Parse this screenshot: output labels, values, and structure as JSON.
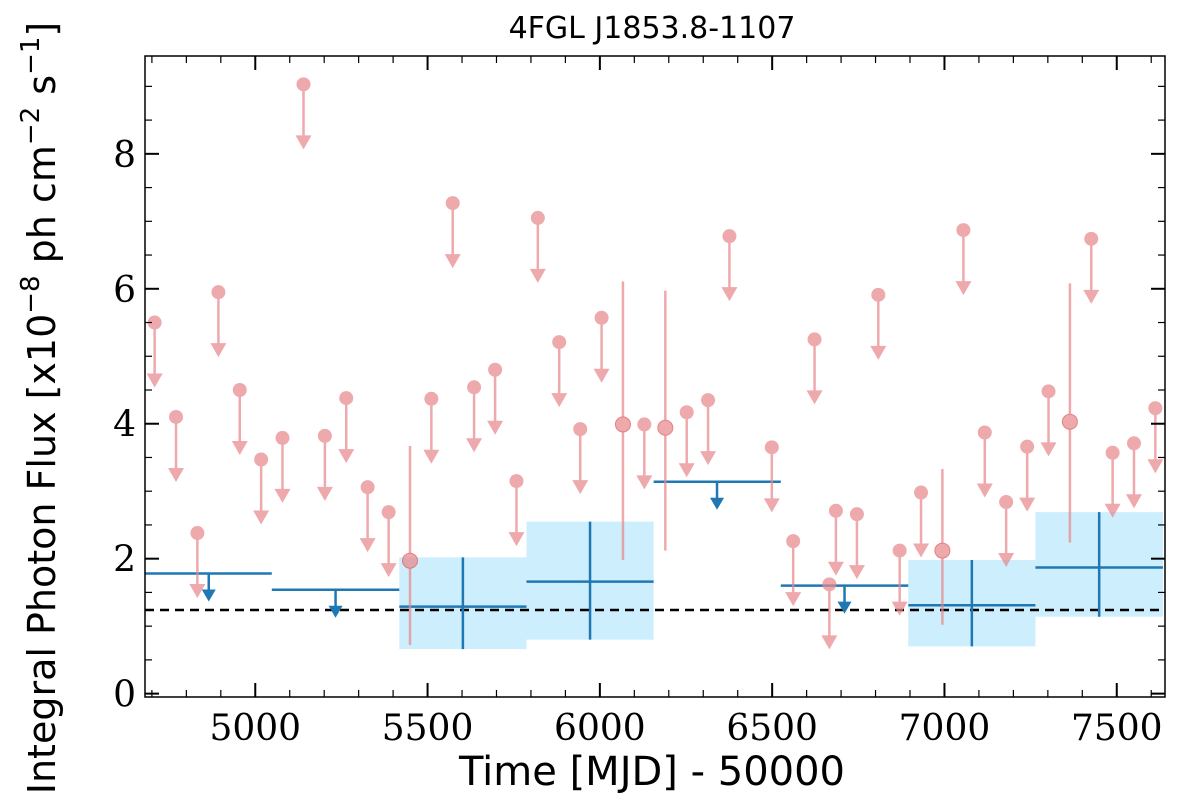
{
  "chart_data": {
    "type": "scatter",
    "title": "4FGL J1853.8-1107",
    "xlabel": "Time [MJD] - 50000",
    "ylabel": "Integral Photon Flux [x10$^{-8}$ ph cm$^{-2}$ s$^{-1}$]",
    "ylabel_parts": {
      "main": "Integral Photon Flux [x10",
      "exp1": "−8",
      "mid": " ph cm",
      "exp2": "−2",
      "mid2": " s",
      "exp3": "−1",
      "close": "]"
    },
    "xlim": [
      4680,
      7640
    ],
    "ylim": [
      -0.05,
      9.45
    ],
    "x_ticks": [
      5000,
      5500,
      6000,
      6500,
      7000,
      7500
    ],
    "y_ticks": [
      0,
      2,
      4,
      6,
      8
    ],
    "grid": false,
    "reference_line": 1.24,
    "short_bins": {
      "upper_limits": [
        [
          4708,
          5.5
        ],
        [
          4770,
          4.1
        ],
        [
          4832,
          2.38
        ],
        [
          4893,
          5.95
        ],
        [
          4955,
          4.5
        ],
        [
          5017,
          3.47
        ],
        [
          5079,
          3.79
        ],
        [
          5140,
          9.03
        ],
        [
          5202,
          3.82
        ],
        [
          5264,
          4.38
        ],
        [
          5326,
          3.06
        ],
        [
          5387,
          2.69
        ],
        [
          5511,
          4.37
        ],
        [
          5573,
          7.27
        ],
        [
          5635,
          4.54
        ],
        [
          5696,
          4.8
        ],
        [
          5758,
          3.15
        ],
        [
          5820,
          7.05
        ],
        [
          5882,
          5.21
        ],
        [
          5943,
          3.92
        ],
        [
          6005,
          5.57
        ],
        [
          6129,
          3.99
        ],
        [
          6252,
          4.17
        ],
        [
          6314,
          4.35
        ],
        [
          6376,
          6.78
        ],
        [
          6499,
          3.65
        ],
        [
          6561,
          2.26
        ],
        [
          6623,
          5.25
        ],
        [
          6685,
          2.71
        ],
        [
          6746,
          2.66
        ],
        [
          6808,
          5.91
        ],
        [
          6870,
          2.12
        ],
        [
          6932,
          2.98
        ],
        [
          7055,
          6.87
        ],
        [
          7117,
          3.87
        ],
        [
          7179,
          2.84
        ],
        [
          7240,
          3.66
        ],
        [
          7302,
          4.48
        ],
        [
          7426,
          6.74
        ],
        [
          7488,
          3.57
        ],
        [
          7550,
          3.71
        ],
        [
          7612,
          4.23
        ],
        [
          6666,
          1.62
        ]
      ],
      "detections": [
        {
          "x": 5449,
          "y": 1.97,
          "lo": 0.72,
          "hi": 3.67
        },
        {
          "x": 6067,
          "y": 3.99,
          "lo": 1.98,
          "hi": 6.11
        },
        {
          "x": 6190,
          "y": 3.94,
          "lo": 2.12,
          "hi": 5.97
        },
        {
          "x": 6994,
          "y": 2.12,
          "lo": 1.02,
          "hi": 3.33
        },
        {
          "x": 7364,
          "y": 4.03,
          "lo": 2.24,
          "hi": 6.08
        }
      ]
    },
    "long_bins": {
      "upper_limits": [
        {
          "x0": 4680,
          "x1": 5048,
          "y": 1.78,
          "xc": 4865
        },
        {
          "x0": 5048,
          "x1": 5418,
          "y": 1.54,
          "xc": 5233
        },
        {
          "x0": 6156,
          "x1": 6525,
          "y": 3.14,
          "xc": 6340
        },
        {
          "x0": 6525,
          "x1": 6895,
          "y": 1.6,
          "xc": 6710
        }
      ],
      "detections": [
        {
          "x0": 5418,
          "x1": 5787,
          "y": 1.29,
          "lo": 0.66,
          "hi": 2.02
        },
        {
          "x0": 5787,
          "x1": 6156,
          "y": 1.66,
          "lo": 0.8,
          "hi": 2.55
        },
        {
          "x0": 6895,
          "x1": 7264,
          "y": 1.31,
          "lo": 0.7,
          "hi": 1.98
        },
        {
          "x0": 7264,
          "x1": 7634,
          "y": 1.87,
          "lo": 1.14,
          "hi": 2.69
        }
      ]
    },
    "colors": {
      "short": "#e8888d",
      "long": "#1f77b4",
      "band": "#cdeefc",
      "reference": "#000000"
    }
  }
}
